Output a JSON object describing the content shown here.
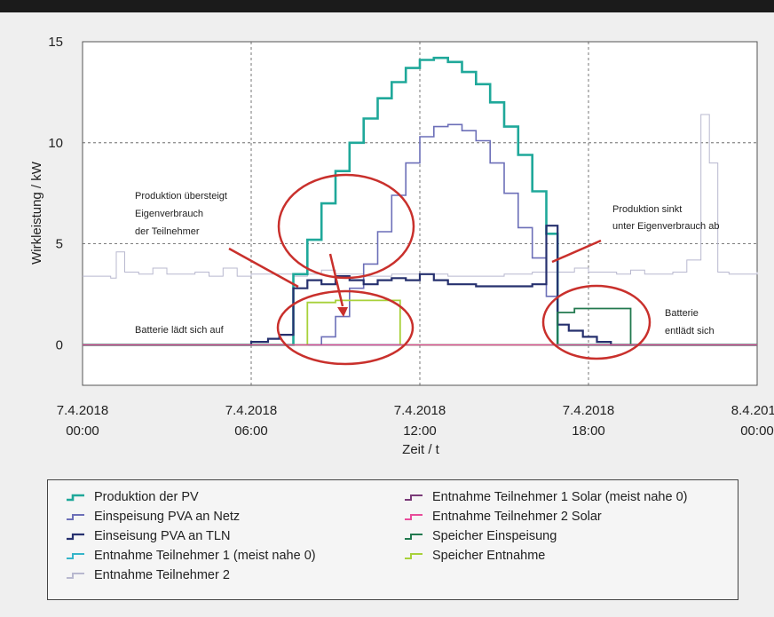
{
  "chart_data": {
    "type": "line",
    "ylabel": "Wirkleistung / kW",
    "xlabel": "Zeit / t",
    "ylim": [
      -2,
      15
    ],
    "xlim": [
      0,
      24
    ],
    "yticks": [
      0,
      5,
      10,
      15
    ],
    "xticks": [
      {
        "x": 0,
        "line1": "7.4.2018",
        "line2": "00:00"
      },
      {
        "x": 6,
        "line1": "7.4.2018",
        "line2": "06:00"
      },
      {
        "x": 12,
        "line1": "7.4.2018",
        "line2": "12:00"
      },
      {
        "x": 18,
        "line1": "7.4.2018",
        "line2": "18:00"
      },
      {
        "x": 24,
        "line1": "8.4.2018",
        "line2": "00:00"
      }
    ],
    "grid": "dashed",
    "annotations": [
      {
        "text": [
          "Produktion übersteigt",
          "Eigenverbrauch",
          "der Teilnehmer"
        ]
      },
      {
        "text": [
          "Batterie lädt sich auf"
        ]
      },
      {
        "text": [
          "Produktion sinkt",
          "unter Eigenverbrauch ab"
        ]
      },
      {
        "text": [
          "Batterie",
          "entlädt sich"
        ]
      }
    ],
    "series": [
      {
        "name": "Produktion der PV",
        "color": "#1fa89a",
        "width": 2.6,
        "points": [
          [
            0,
            0
          ],
          [
            7.5,
            0
          ],
          [
            7.5,
            3.5
          ],
          [
            8.0,
            5.2
          ],
          [
            8.5,
            7.0
          ],
          [
            9.0,
            8.6
          ],
          [
            9.5,
            10.0
          ],
          [
            10.0,
            11.2
          ],
          [
            10.5,
            12.2
          ],
          [
            11.0,
            13.0
          ],
          [
            11.5,
            13.7
          ],
          [
            12.0,
            14.1
          ],
          [
            12.5,
            14.2
          ],
          [
            13.0,
            14.0
          ],
          [
            13.5,
            13.5
          ],
          [
            14.0,
            12.9
          ],
          [
            14.5,
            12.0
          ],
          [
            15.0,
            10.8
          ],
          [
            15.5,
            9.4
          ],
          [
            16.0,
            7.6
          ],
          [
            16.5,
            5.5
          ],
          [
            16.9,
            4.0
          ],
          [
            16.9,
            0
          ],
          [
            24,
            0
          ]
        ]
      },
      {
        "name": "Einspeisung PVA an Netz",
        "color": "#6c6fb8",
        "width": 1.6,
        "points": [
          [
            0,
            0
          ],
          [
            8.5,
            0
          ],
          [
            8.5,
            0.4
          ],
          [
            9.0,
            1.4
          ],
          [
            9.5,
            2.8
          ],
          [
            10.0,
            4.0
          ],
          [
            10.5,
            5.6
          ],
          [
            11.0,
            7.4
          ],
          [
            11.5,
            9.0
          ],
          [
            12.0,
            10.3
          ],
          [
            12.5,
            10.8
          ],
          [
            13.0,
            10.9
          ],
          [
            13.5,
            10.6
          ],
          [
            14.0,
            10.1
          ],
          [
            14.5,
            9.0
          ],
          [
            15.0,
            7.5
          ],
          [
            15.5,
            5.8
          ],
          [
            16.0,
            4.3
          ],
          [
            16.5,
            2.4
          ],
          [
            16.9,
            0
          ],
          [
            24,
            0
          ]
        ]
      },
      {
        "name": "Einseisung PVA an TLN",
        "color": "#26306e",
        "width": 2.2,
        "points": [
          [
            0,
            0
          ],
          [
            6.0,
            0
          ],
          [
            6.0,
            0.15
          ],
          [
            6.6,
            0.3
          ],
          [
            7.0,
            0.5
          ],
          [
            7.5,
            2.8
          ],
          [
            8.0,
            3.2
          ],
          [
            8.5,
            3.0
          ],
          [
            9.0,
            3.4
          ],
          [
            9.5,
            3.2
          ],
          [
            10.0,
            3.0
          ],
          [
            10.5,
            3.2
          ],
          [
            11.0,
            3.3
          ],
          [
            11.5,
            3.2
          ],
          [
            12.0,
            3.5
          ],
          [
            12.5,
            3.2
          ],
          [
            13.0,
            3.0
          ],
          [
            14.0,
            2.9
          ],
          [
            15.0,
            2.9
          ],
          [
            16.0,
            3.0
          ],
          [
            16.5,
            5.9
          ],
          [
            16.9,
            1.0
          ],
          [
            17.3,
            0.7
          ],
          [
            17.8,
            0.4
          ],
          [
            18.3,
            0.15
          ],
          [
            18.8,
            0
          ],
          [
            24,
            0
          ]
        ]
      },
      {
        "name": "Entnahme Teilnehmer 1 (meist nahe 0)",
        "color": "#35b5c9",
        "width": 1.2,
        "points": [
          [
            0,
            0
          ],
          [
            24,
            0
          ]
        ]
      },
      {
        "name": "Entnahme Teilnehmer 2",
        "color": "#b8b8cf",
        "width": 1.0,
        "points": [
          [
            0,
            3.4
          ],
          [
            1.0,
            3.3
          ],
          [
            1.2,
            4.6
          ],
          [
            1.5,
            3.6
          ],
          [
            2.0,
            3.5
          ],
          [
            2.5,
            3.8
          ],
          [
            3.0,
            3.5
          ],
          [
            4.0,
            3.6
          ],
          [
            4.5,
            3.4
          ],
          [
            5.0,
            3.8
          ],
          [
            5.5,
            3.4
          ],
          [
            6.0,
            3.5
          ],
          [
            7.0,
            3.5
          ],
          [
            7.5,
            3.4
          ],
          [
            8.0,
            3.5
          ],
          [
            8.5,
            3.7
          ],
          [
            9.0,
            3.5
          ],
          [
            10.0,
            3.4
          ],
          [
            11.0,
            3.5
          ],
          [
            12.0,
            3.5
          ],
          [
            13.0,
            3.4
          ],
          [
            14.0,
            3.4
          ],
          [
            15.0,
            3.5
          ],
          [
            16.0,
            3.6
          ],
          [
            16.9,
            3.6
          ],
          [
            17.5,
            3.8
          ],
          [
            18.0,
            3.6
          ],
          [
            19.0,
            3.5
          ],
          [
            19.5,
            3.7
          ],
          [
            20.0,
            3.5
          ],
          [
            21.0,
            3.6
          ],
          [
            21.5,
            4.2
          ],
          [
            22.0,
            11.4
          ],
          [
            22.3,
            9.0
          ],
          [
            22.6,
            3.6
          ],
          [
            23.0,
            3.5
          ],
          [
            24,
            3.6
          ]
        ]
      },
      {
        "name": "Entnahme Teilnehmer 1 Solar (meist nahe 0)",
        "color": "#7a3b78",
        "width": 1.2,
        "points": [
          [
            0,
            0
          ],
          [
            24,
            0
          ]
        ]
      },
      {
        "name": "Entnahme Teilnehmer 2 Solar",
        "color": "#e84c9a",
        "width": 1.2,
        "points": [
          [
            0,
            0
          ],
          [
            24,
            0
          ]
        ]
      },
      {
        "name": "Speicher Einspeisung",
        "color": "#22794f",
        "width": 1.8,
        "points": [
          [
            0,
            0
          ],
          [
            16.9,
            0
          ],
          [
            16.9,
            1.6
          ],
          [
            17.5,
            1.8
          ],
          [
            18.5,
            1.8
          ],
          [
            19.5,
            1.6
          ],
          [
            19.5,
            0
          ],
          [
            24,
            0
          ]
        ]
      },
      {
        "name": "Speicher Entnahme",
        "color": "#a8d13a",
        "width": 1.8,
        "points": [
          [
            0,
            0
          ],
          [
            8.0,
            0
          ],
          [
            8.0,
            2.1
          ],
          [
            9.0,
            2.2
          ],
          [
            10.5,
            2.2
          ],
          [
            11.3,
            2.0
          ],
          [
            11.3,
            0
          ],
          [
            24,
            0
          ]
        ]
      }
    ]
  }
}
